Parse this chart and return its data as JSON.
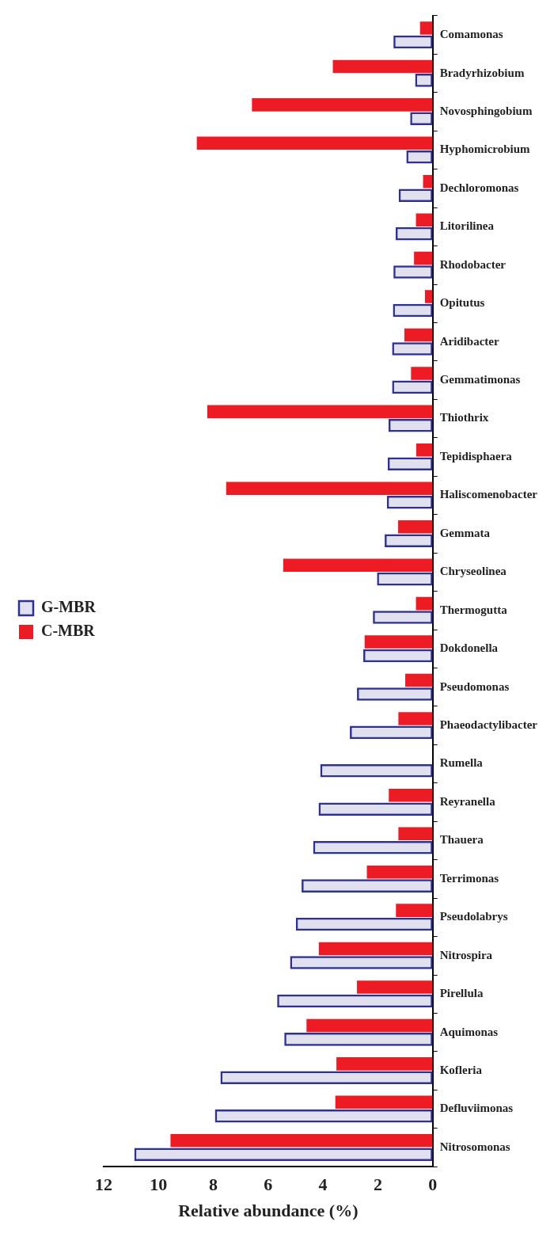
{
  "chart_data": {
    "type": "bar",
    "orientation": "horizontal",
    "xlabel": "Relative abundance (%)",
    "categories": [
      "Comamonas",
      "Bradyrhizobium",
      "Novosphingobium",
      "Hyphomicrobium",
      "Dechloromonas",
      "Litorilinea",
      "Rhodobacter",
      "Opitutus",
      "Aridibacter",
      "Gemmatimonas",
      "Thiothrix",
      "Tepidisphaera",
      "Haliscomenobacter",
      "Gemmata",
      "Chryseolinea",
      "Thermogutta",
      "Dokdonella",
      "Pseudomonas",
      "Phaeodactylibacter",
      "Rumella",
      "Reyranella",
      "Thauera",
      "Terrimonas",
      "Pseudolabrys",
      "Nitrospira",
      "Pirellula",
      "Aquimonas",
      "Kofleria",
      "Defluviimonas",
      "Nitrosomonas"
    ],
    "series": [
      {
        "name": "G-MBR",
        "color": "#2e3192",
        "values": [
          1.43,
          0.64,
          0.82,
          0.96,
          1.24,
          1.35,
          1.43,
          1.45,
          1.48,
          1.48,
          1.61,
          1.64,
          1.67,
          1.75,
          2.03,
          2.18,
          2.53,
          2.76,
          3.02,
          4.1,
          4.16,
          4.36,
          4.78,
          4.99,
          5.2,
          5.67,
          5.41,
          7.74,
          7.94,
          10.88
        ]
      },
      {
        "name": "C-MBR",
        "color": "#ed1c24",
        "values": [
          0.46,
          3.64,
          6.59,
          8.6,
          0.35,
          0.61,
          0.68,
          0.28,
          1.03,
          0.79,
          8.22,
          0.6,
          7.53,
          1.26,
          5.45,
          0.61,
          2.48,
          1.0,
          1.25,
          0,
          1.6,
          1.25,
          2.4,
          1.34,
          4.15,
          2.76,
          4.6,
          3.51,
          3.55,
          9.56
        ]
      }
    ],
    "xlim": [
      12,
      0
    ],
    "xticks": [
      0,
      2,
      4,
      6,
      8,
      10,
      12
    ],
    "grid": false,
    "legend": "left"
  }
}
